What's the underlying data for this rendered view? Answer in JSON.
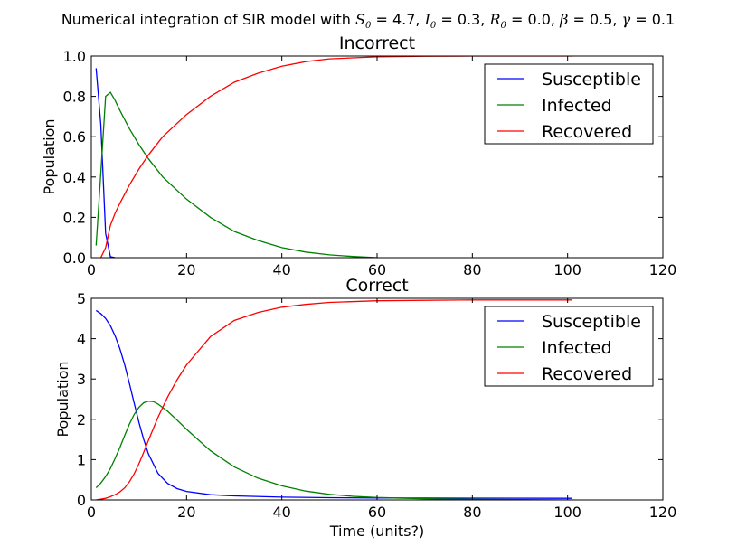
{
  "figure": {
    "suptitle": {
      "prefix": "Numerical integration of SIR model with ",
      "S0_sym": "S",
      "S0_val": " = 4.7, ",
      "I0_sym": "I",
      "I0_val": " = 0.3, ",
      "R0_sym": "R",
      "R0_val": " = 0.0, ",
      "beta_sym": "β",
      "beta_val": " = 0.5, ",
      "gamma_sym": "γ",
      "gamma_val": " = 0.1",
      "subscript": "0"
    },
    "xlabel": "Time (units?)"
  },
  "colors": {
    "Susceptible": "#0000ff",
    "Infected": "#008000",
    "Recovered": "#ff0000"
  },
  "chart_data": [
    {
      "type": "line",
      "title": "Incorrect",
      "ylabel": "Population",
      "xlabel": "",
      "xlim": [
        0,
        120
      ],
      "ylim": [
        0,
        1
      ],
      "xticks": [
        0,
        20,
        40,
        60,
        80,
        100,
        120
      ],
      "yticks": [
        0.0,
        0.2,
        0.4,
        0.6,
        0.8,
        1.0
      ],
      "ytick_labels": [
        "0.0",
        "0.2",
        "0.4",
        "0.6",
        "0.8",
        "1.0"
      ],
      "legend": "upper-right",
      "series": [
        {
          "name": "Susceptible",
          "x": [
            1,
            2,
            3,
            4,
            5
          ],
          "y": [
            0.94,
            0.66,
            0.12,
            0.005,
            0.0
          ]
        },
        {
          "name": "Infected",
          "x": [
            1,
            2,
            3,
            4,
            5,
            6,
            8,
            10,
            12,
            15,
            20,
            25,
            30,
            35,
            40,
            45,
            50,
            55,
            60
          ],
          "y": [
            0.06,
            0.42,
            0.8,
            0.82,
            0.78,
            0.73,
            0.64,
            0.56,
            0.49,
            0.4,
            0.29,
            0.2,
            0.13,
            0.085,
            0.05,
            0.028,
            0.014,
            0.006,
            0.0
          ]
        },
        {
          "name": "Recovered",
          "x": [
            2,
            3,
            4,
            5,
            6,
            8,
            10,
            12,
            15,
            20,
            25,
            30,
            35,
            40,
            45,
            50,
            60,
            70,
            80,
            90,
            101
          ],
          "y": [
            0.0,
            0.05,
            0.16,
            0.22,
            0.27,
            0.36,
            0.44,
            0.51,
            0.6,
            0.71,
            0.8,
            0.87,
            0.915,
            0.95,
            0.972,
            0.986,
            0.996,
            0.999,
            1.0,
            1.0,
            1.0
          ]
        }
      ]
    },
    {
      "type": "line",
      "title": "Correct",
      "ylabel": "Population",
      "xlabel": "Time (units?)",
      "xlim": [
        0,
        120
      ],
      "ylim": [
        0,
        5
      ],
      "xticks": [
        0,
        20,
        40,
        60,
        80,
        100,
        120
      ],
      "yticks": [
        0,
        1,
        2,
        3,
        4,
        5
      ],
      "ytick_labels": [
        "0",
        "1",
        "2",
        "3",
        "4",
        "5"
      ],
      "legend": "upper-right",
      "series": [
        {
          "name": "Susceptible",
          "x": [
            1,
            2,
            3,
            4,
            5,
            6,
            7,
            8,
            9,
            10,
            11,
            12,
            14,
            16,
            18,
            20,
            25,
            30,
            40,
            50,
            60,
            80,
            101
          ],
          "y": [
            4.7,
            4.62,
            4.5,
            4.32,
            4.07,
            3.75,
            3.35,
            2.89,
            2.4,
            1.92,
            1.5,
            1.14,
            0.66,
            0.41,
            0.28,
            0.21,
            0.13,
            0.1,
            0.07,
            0.055,
            0.05,
            0.045,
            0.04
          ]
        },
        {
          "name": "Infected",
          "x": [
            1,
            2,
            3,
            4,
            5,
            6,
            7,
            8,
            9,
            10,
            11,
            12,
            13,
            14,
            16,
            18,
            20,
            25,
            30,
            35,
            40,
            45,
            50,
            55,
            60,
            70,
            80,
            101
          ],
          "y": [
            0.3,
            0.42,
            0.58,
            0.78,
            1.03,
            1.3,
            1.6,
            1.88,
            2.12,
            2.3,
            2.41,
            2.45,
            2.44,
            2.38,
            2.2,
            1.98,
            1.75,
            1.22,
            0.82,
            0.54,
            0.35,
            0.22,
            0.14,
            0.09,
            0.06,
            0.03,
            0.015,
            0.0
          ]
        },
        {
          "name": "Recovered",
          "x": [
            1,
            2,
            3,
            4,
            5,
            6,
            7,
            8,
            9,
            10,
            11,
            12,
            14,
            16,
            18,
            20,
            25,
            30,
            35,
            40,
            45,
            50,
            60,
            70,
            80,
            90,
            101
          ],
          "y": [
            0.0,
            0.02,
            0.04,
            0.08,
            0.13,
            0.2,
            0.3,
            0.45,
            0.65,
            0.9,
            1.18,
            1.48,
            2.05,
            2.55,
            2.98,
            3.35,
            4.05,
            4.45,
            4.65,
            4.78,
            4.85,
            4.9,
            4.94,
            4.95,
            4.96,
            4.96,
            4.96
          ]
        }
      ]
    }
  ]
}
